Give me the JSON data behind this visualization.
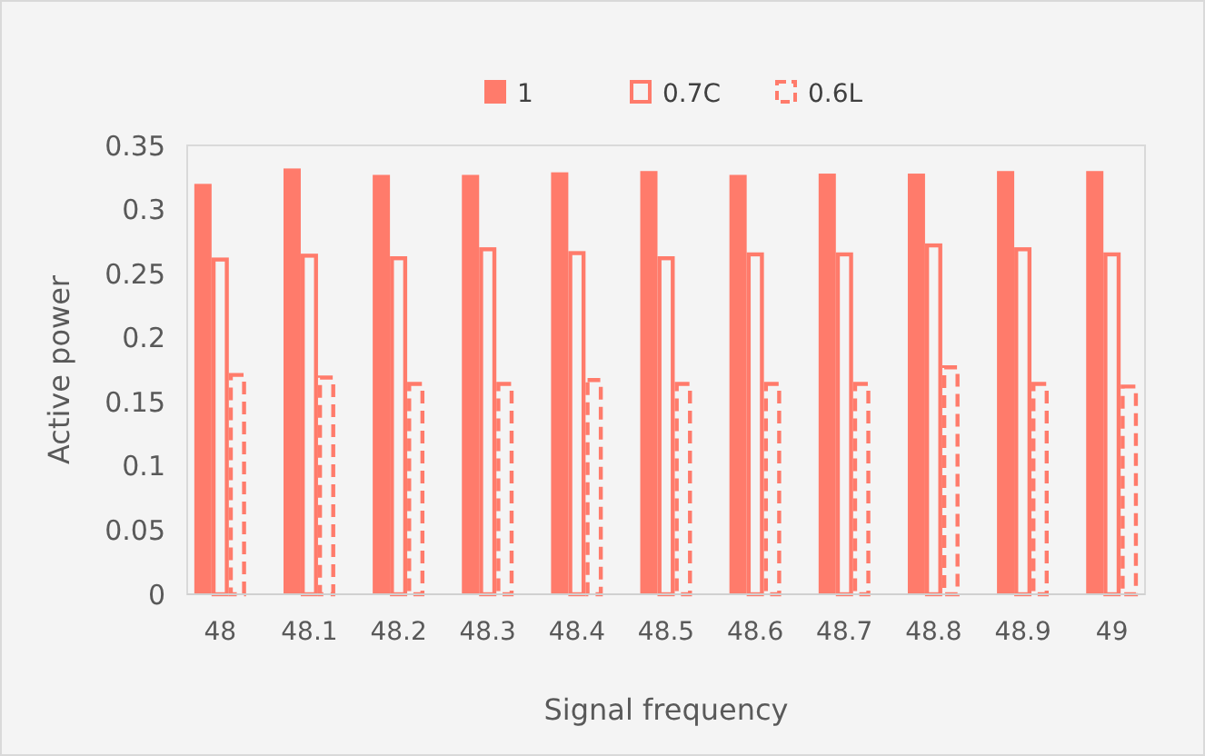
{
  "chart_data": {
    "type": "bar",
    "xlabel": "Signal frequency",
    "ylabel": "Active power",
    "categories": [
      "48",
      "48.1",
      "48.2",
      "48.3",
      "48.4",
      "48.5",
      "48.6",
      "48.7",
      "48.8",
      "48.9",
      "49"
    ],
    "series": [
      {
        "name": "1",
        "color": "#ff7b6b",
        "values": [
          0.32,
          0.332,
          0.327,
          0.327,
          0.329,
          0.33,
          0.327,
          0.328,
          0.328,
          0.33,
          0.33
        ]
      },
      {
        "name": "0.7C",
        "color": "#ff7b6b",
        "line_style": "solid",
        "values": [
          0.261,
          0.264,
          0.262,
          0.269,
          0.266,
          0.262,
          0.265,
          0.265,
          0.272,
          0.269,
          0.265
        ]
      },
      {
        "name": "0.6L",
        "color": "#ff7b6b",
        "line_style": "dashed",
        "values": [
          0.171,
          0.169,
          0.164,
          0.164,
          0.167,
          0.164,
          0.164,
          0.164,
          0.177,
          0.164,
          0.162
        ]
      }
    ],
    "ylim": [
      0,
      0.35
    ],
    "yticks": [
      0,
      {
        "value": 0.05,
        "label": "0.05"
      },
      {
        "value": 0.1,
        "label": "0.1"
      },
      {
        "value": 0.15,
        "label": "0.15"
      },
      {
        "value": 0.2,
        "label": "0.2"
      },
      {
        "value": 0.25,
        "label": "0.25"
      },
      {
        "value": 0.3,
        "label": "0.3"
      },
      {
        "value": 0.35,
        "label": "0.35"
      }
    ],
    "grid": false,
    "legend": "top"
  }
}
